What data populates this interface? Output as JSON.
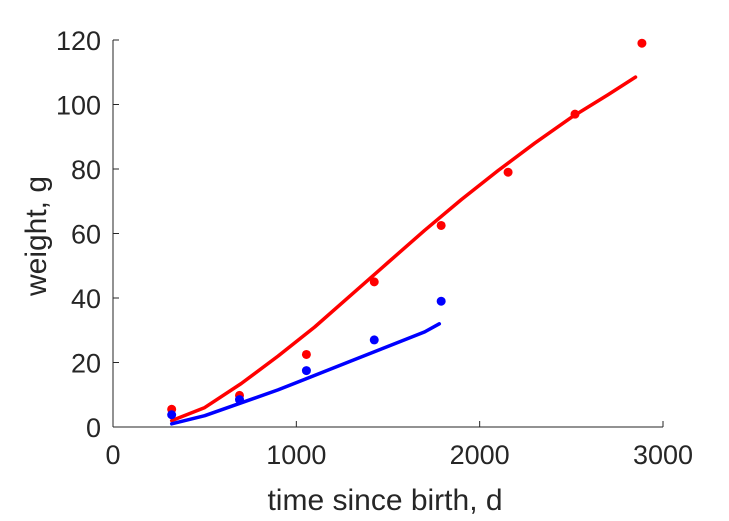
{
  "chart_data": {
    "type": "scatter",
    "title": "",
    "xlabel": "time since birth, d",
    "ylabel": "weight, g",
    "xlim": [
      0,
      3000
    ],
    "ylim": [
      0,
      120
    ],
    "xticks": [
      0,
      1000,
      2000,
      3000
    ],
    "yticks": [
      0,
      20,
      40,
      60,
      80,
      100,
      120
    ],
    "grid": false,
    "legend": "none",
    "series": [
      {
        "kind": "points",
        "color": "#ff0000",
        "x": [
          320,
          690,
          1055,
          1425,
          1790,
          2155,
          2520,
          2885
        ],
        "y": [
          5.5,
          9.8,
          22.5,
          45,
          62.5,
          79,
          97,
          119
        ]
      },
      {
        "kind": "points",
        "color": "#0000ff",
        "x": [
          320,
          690,
          1055,
          1425,
          1790
        ],
        "y": [
          3.8,
          8.5,
          17.5,
          27,
          39
        ]
      },
      {
        "kind": "line",
        "color": "#ff0000",
        "x": [
          320,
          500,
          700,
          900,
          1100,
          1300,
          1500,
          1700,
          1900,
          2100,
          2300,
          2500,
          2700,
          2850
        ],
        "y": [
          2,
          6,
          13.5,
          22,
          31,
          41,
          51,
          61,
          70.5,
          79.5,
          88,
          96,
          103,
          108.5
        ]
      },
      {
        "kind": "line",
        "color": "#0000ff",
        "x": [
          320,
          500,
          700,
          900,
          1100,
          1300,
          1500,
          1700,
          1780
        ],
        "y": [
          1,
          3.5,
          7.5,
          11.5,
          16,
          20.5,
          25,
          29.5,
          32
        ]
      }
    ]
  }
}
